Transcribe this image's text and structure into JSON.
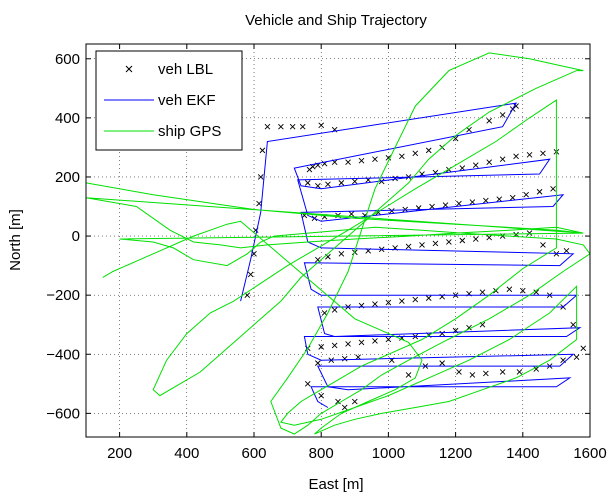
{
  "chart_data": {
    "type": "line",
    "title": "Vehicle and Ship Trajectory",
    "xlabel": "East [m]",
    "ylabel": "North [m]",
    "xlim": [
      100,
      1600
    ],
    "ylim": [
      -680,
      650
    ],
    "xticks": [
      200,
      400,
      600,
      800,
      1000,
      1200,
      1400,
      1600
    ],
    "yticks": [
      -600,
      -400,
      -200,
      0,
      200,
      400,
      600
    ],
    "grid": true,
    "legend_position": "top-left",
    "series": [
      {
        "name": "veh LBL",
        "style": "x-markers",
        "color": "#000000",
        "x": [
          580,
          590,
          600,
          605,
          615,
          620,
          625,
          640,
          680,
          715,
          745,
          800,
          840,
          765,
          775,
          790,
          810,
          840,
          880,
          920,
          960,
          1000,
          1040,
          1080,
          1120,
          1160,
          1200,
          1240,
          1300,
          1340,
          1370,
          1380,
          760,
          790,
          820,
          860,
          900,
          940,
          980,
          1020,
          1060,
          1100,
          1140,
          1180,
          1220,
          1260,
          1300,
          1340,
          1380,
          1420,
          1460,
          1500,
          750,
          780,
          810,
          850,
          890,
          930,
          970,
          1010,
          1050,
          1090,
          1130,
          1170,
          1210,
          1250,
          1290,
          1330,
          1370,
          1410,
          1450,
          1490,
          790,
          820,
          860,
          900,
          940,
          980,
          1020,
          1060,
          1100,
          1140,
          1180,
          1220,
          1260,
          1300,
          1340,
          1380,
          1420,
          1460,
          1500,
          1530,
          810,
          840,
          880,
          920,
          960,
          1000,
          1040,
          1080,
          1120,
          1160,
          1200,
          1240,
          1280,
          1320,
          1360,
          1400,
          1440,
          1480,
          1520,
          1550,
          760,
          800,
          840,
          880,
          920,
          960,
          1000,
          1040,
          1080,
          1120,
          1160,
          1200,
          1240,
          1280,
          790,
          830,
          870,
          910,
          1010,
          1060,
          1110,
          1160,
          1210,
          1250,
          1290,
          1340,
          1390,
          1440,
          1480,
          1520,
          1560,
          1580,
          760,
          800,
          850,
          870,
          900
        ],
        "y": [
          -200,
          -130,
          -60,
          20,
          110,
          200,
          290,
          370,
          370,
          370,
          370,
          375,
          360,
          225,
          235,
          240,
          245,
          250,
          250,
          255,
          260,
          265,
          270,
          280,
          290,
          300,
          330,
          360,
          390,
          410,
          430,
          440,
          180,
          170,
          175,
          180,
          185,
          190,
          185,
          195,
          200,
          210,
          215,
          225,
          230,
          240,
          250,
          260,
          270,
          275,
          280,
          285,
          70,
          60,
          65,
          70,
          75,
          70,
          80,
          85,
          90,
          95,
          100,
          105,
          110,
          115,
          120,
          125,
          130,
          140,
          150,
          160,
          -80,
          -70,
          -60,
          -55,
          -50,
          -45,
          -40,
          -35,
          -30,
          -25,
          -20,
          -15,
          -10,
          -5,
          0,
          5,
          10,
          -30,
          -60,
          -50,
          -260,
          -250,
          -240,
          -235,
          -230,
          -225,
          -220,
          -215,
          -210,
          -205,
          -200,
          -195,
          -190,
          -185,
          -180,
          -185,
          -190,
          -200,
          -240,
          -300,
          -380,
          -375,
          -370,
          -365,
          -360,
          -355,
          -350,
          -345,
          -340,
          -335,
          -330,
          -320,
          -310,
          -300,
          -430,
          -420,
          -415,
          -410,
          -420,
          -470,
          -440,
          -430,
          -460,
          -470,
          -465,
          -460,
          -460,
          -450,
          -440,
          -420,
          -410,
          -380,
          -500,
          -540,
          -560,
          -580,
          -560
        ]
      },
      {
        "name": "veh EKF",
        "style": "line",
        "color": "#0000ff",
        "x": [
          560,
          590,
          620,
          640,
          1380,
          1340,
          720,
          740,
          800,
          1480,
          1450,
          730,
          760,
          800,
          1520,
          1490,
          740,
          760,
          800,
          1550,
          1510,
          750,
          770,
          800,
          1560,
          1520,
          790,
          810,
          840,
          1570,
          1530,
          750,
          760,
          800,
          1550,
          1510,
          790,
          820,
          880,
          1540,
          1500,
          770,
          790,
          820
        ],
        "y": [
          -220,
          -80,
          80,
          320,
          450,
          370,
          230,
          170,
          160,
          260,
          210,
          190,
          70,
          50,
          140,
          100,
          80,
          -20,
          -40,
          -60,
          -100,
          -90,
          -180,
          -200,
          -200,
          -240,
          -240,
          -330,
          -340,
          -310,
          -340,
          -340,
          -400,
          -420,
          -400,
          -440,
          -440,
          -510,
          -520,
          -480,
          -510,
          -510,
          -560,
          -580
        ]
      },
      {
        "name": "ship GPS",
        "style": "line",
        "color": "#00e000",
        "x": [
          100,
          300,
          600,
          900,
          1200,
          1500,
          1580,
          100,
          250,
          350,
          420,
          500,
          560,
          640,
          760,
          900,
          1060,
          1200,
          1360,
          1500,
          1580,
          200,
          300,
          360,
          420,
          520,
          580,
          620,
          660,
          760,
          860,
          960,
          1100,
          1220,
          1360,
          1500,
          1580,
          1600,
          1520,
          1420,
          1300,
          1160,
          1060,
          980,
          920,
          860,
          800,
          760,
          720,
          680,
          650,
          700,
          760,
          820,
          880,
          920,
          960,
          1020,
          1080,
          1180,
          1300,
          1420,
          1500,
          1580,
          1560,
          1440,
          1300,
          1200,
          1120,
          1060,
          980,
          900,
          820,
          740,
          680,
          620,
          560,
          500,
          440,
          380,
          320,
          300,
          340,
          400,
          470,
          540,
          620,
          700,
          790,
          880,
          980,
          1080,
          1200,
          1320,
          1420,
          1500,
          1500,
          1400,
          1300,
          1200,
          1100,
          1000,
          920,
          860,
          800,
          740,
          700,
          680,
          720,
          800,
          900,
          1000,
          1120,
          1240,
          1360,
          1480,
          1560,
          1560,
          1480,
          1380,
          1280,
          1180,
          1080,
          980,
          900,
          840,
          800,
          780,
          800,
          860,
          940,
          1020,
          1080,
          1100,
          1060,
          980,
          900,
          560,
          520,
          470,
          420,
          380,
          340,
          300,
          260,
          220,
          180,
          150
        ],
        "y": [
          180,
          140,
          90,
          60,
          40,
          20,
          10,
          130,
          100,
          20,
          -20,
          -30,
          -40,
          -30,
          -20,
          -10,
          0,
          10,
          20,
          30,
          10,
          -10,
          -20,
          -40,
          -80,
          -100,
          -60,
          -20,
          0,
          10,
          20,
          30,
          20,
          10,
          0,
          -10,
          -30,
          -60,
          -120,
          -200,
          -280,
          -360,
          -420,
          -470,
          -520,
          -560,
          -600,
          -640,
          -670,
          -650,
          -560,
          -480,
          -380,
          -260,
          -120,
          20,
          160,
          300,
          440,
          560,
          620,
          600,
          580,
          560,
          560,
          500,
          420,
          340,
          260,
          180,
          100,
          20,
          -60,
          -140,
          -220,
          -280,
          -340,
          -400,
          -460,
          -500,
          -540,
          -520,
          -420,
          -330,
          -260,
          -220,
          -160,
          -100,
          -40,
          20,
          90,
          160,
          240,
          320,
          400,
          460,
          -40,
          -110,
          -200,
          -280,
          -350,
          -400,
          -440,
          -480,
          -520,
          -560,
          -600,
          -630,
          -640,
          -620,
          -580,
          -540,
          -480,
          -420,
          -350,
          -260,
          -170,
          -350,
          -420,
          -480,
          -520,
          -560,
          -580,
          -600,
          -620,
          -640,
          -660,
          -670,
          -650,
          -600,
          -560,
          -520,
          -480,
          -420,
          -360,
          -320,
          -280,
          50,
          40,
          20,
          0,
          -20,
          -40,
          -60,
          -80,
          -100,
          -120,
          -140
        ]
      }
    ]
  }
}
